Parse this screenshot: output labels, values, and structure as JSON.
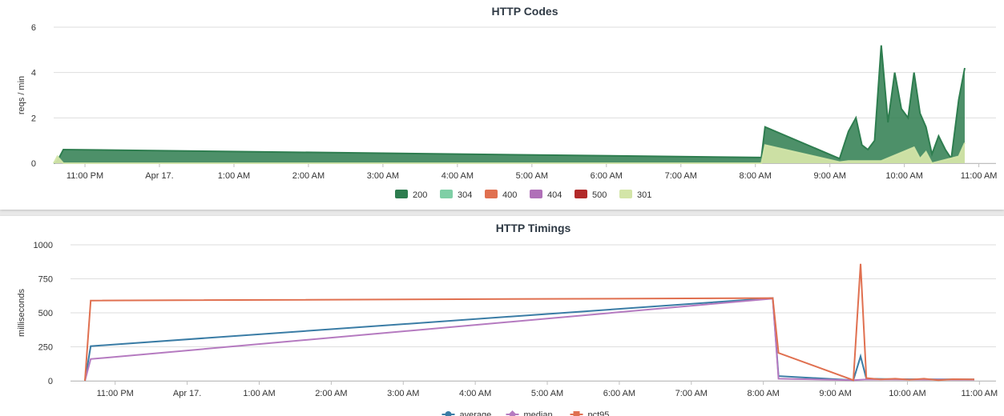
{
  "chart_data": [
    {
      "type": "area",
      "title": "HTTP Codes",
      "ylabel": "reqs / min",
      "xlabel": "",
      "ylim": [
        0,
        6
      ],
      "yticks": [
        "0",
        "2",
        "4",
        "6"
      ],
      "xlim": [
        -1.25,
        11.4
      ],
      "x_ticks": [
        {
          "x": -0.83,
          "label": "11:00 PM"
        },
        {
          "x": 0.17,
          "label": "Apr 17."
        },
        {
          "x": 1.17,
          "label": "1:00 AM"
        },
        {
          "x": 2.17,
          "label": "2:00 AM"
        },
        {
          "x": 3.17,
          "label": "3:00 AM"
        },
        {
          "x": 4.17,
          "label": "4:00 AM"
        },
        {
          "x": 5.17,
          "label": "5:00 AM"
        },
        {
          "x": 6.17,
          "label": "6:00 AM"
        },
        {
          "x": 7.17,
          "label": "7:00 AM"
        },
        {
          "x": 8.17,
          "label": "8:00 AM"
        },
        {
          "x": 9.17,
          "label": "9:00 AM"
        },
        {
          "x": 10.17,
          "label": "10:00 AM"
        },
        {
          "x": 11.17,
          "label": "11:00 AM"
        }
      ],
      "legend_position": "bottom",
      "series": [
        {
          "name": "200",
          "color": "#2e7d4f",
          "points": [
            [
              -1.25,
              0
            ],
            [
              -1.2,
              0.1
            ],
            [
              -1.12,
              0.6
            ],
            [
              8.25,
              0.25
            ],
            [
              8.3,
              1.6
            ],
            [
              9.3,
              0.2
            ],
            [
              9.42,
              1.4
            ],
            [
              9.52,
              2.0
            ],
            [
              9.6,
              0.8
            ],
            [
              9.68,
              0.6
            ],
            [
              9.77,
              1.0
            ],
            [
              9.86,
              5.2
            ],
            [
              9.95,
              1.8
            ],
            [
              10.04,
              4.0
            ],
            [
              10.13,
              2.4
            ],
            [
              10.22,
              2.0
            ],
            [
              10.3,
              4.0
            ],
            [
              10.38,
              2.2
            ],
            [
              10.46,
              1.6
            ],
            [
              10.54,
              0.4
            ],
            [
              10.63,
              1.2
            ],
            [
              10.72,
              0.6
            ],
            [
              10.8,
              0.2
            ],
            [
              10.9,
              2.8
            ],
            [
              10.98,
              4.2
            ]
          ]
        },
        {
          "name": "304",
          "color": "#7fcfa6",
          "points": []
        },
        {
          "name": "400",
          "color": "#e07050",
          "points": []
        },
        {
          "name": "404",
          "color": "#b070b8",
          "points": []
        },
        {
          "name": "500",
          "color": "#b22a2a",
          "points": []
        },
        {
          "name": "301",
          "color": "#d3e5a8",
          "points": [
            [
              -1.25,
              0
            ],
            [
              -1.2,
              0.3
            ],
            [
              -1.12,
              0
            ],
            [
              8.25,
              0
            ],
            [
              8.3,
              0.8
            ],
            [
              9.3,
              0.05
            ],
            [
              9.42,
              0.1
            ],
            [
              9.86,
              0.1
            ],
            [
              10.3,
              0.7
            ],
            [
              10.38,
              0.2
            ],
            [
              10.46,
              0.5
            ],
            [
              10.54,
              0
            ],
            [
              10.9,
              0.3
            ],
            [
              10.98,
              0.9
            ]
          ]
        }
      ]
    },
    {
      "type": "line",
      "title": "HTTP Timings",
      "ylabel": "milliseconds",
      "xlabel": "",
      "ylim": [
        0,
        1000
      ],
      "yticks": [
        "0",
        "250",
        "500",
        "750",
        "1000"
      ],
      "xlim": [
        -1.45,
        11.4
      ],
      "x_ticks": [
        {
          "x": -0.83,
          "label": "11:00 PM"
        },
        {
          "x": 0.17,
          "label": "Apr 17."
        },
        {
          "x": 1.17,
          "label": "1:00 AM"
        },
        {
          "x": 2.17,
          "label": "2:00 AM"
        },
        {
          "x": 3.17,
          "label": "3:00 AM"
        },
        {
          "x": 4.17,
          "label": "4:00 AM"
        },
        {
          "x": 5.17,
          "label": "5:00 AM"
        },
        {
          "x": 6.17,
          "label": "6:00 AM"
        },
        {
          "x": 7.17,
          "label": "7:00 AM"
        },
        {
          "x": 8.17,
          "label": "8:00 AM"
        },
        {
          "x": 9.17,
          "label": "9:00 AM"
        },
        {
          "x": 10.17,
          "label": "10:00 AM"
        },
        {
          "x": 11.17,
          "label": "11:00 AM"
        }
      ],
      "legend_position": "bottom",
      "series": [
        {
          "name": "average",
          "color": "#3a7ca5",
          "marker": "circle",
          "points": [
            [
              -1.25,
              0
            ],
            [
              -1.17,
              255
            ],
            [
              8.3,
              608
            ],
            [
              8.38,
              35
            ],
            [
              9.42,
              5
            ],
            [
              9.52,
              180
            ],
            [
              9.6,
              15
            ],
            [
              10.0,
              12
            ],
            [
              11.1,
              10
            ]
          ]
        },
        {
          "name": "median",
          "color": "#b57ac0",
          "marker": "diamond",
          "points": [
            [
              -1.25,
              0
            ],
            [
              -1.17,
              160
            ],
            [
              8.3,
              605
            ],
            [
              8.38,
              15
            ],
            [
              9.42,
              5
            ],
            [
              9.6,
              10
            ],
            [
              11.1,
              8
            ]
          ]
        },
        {
          "name": "pct95",
          "color": "#e07050",
          "marker": "square",
          "points": [
            [
              -1.25,
              0
            ],
            [
              -1.17,
              590
            ],
            [
              8.3,
              608
            ],
            [
              8.38,
              205
            ],
            [
              9.42,
              5
            ],
            [
              9.52,
              860
            ],
            [
              9.6,
              20
            ],
            [
              9.8,
              10
            ],
            [
              10.0,
              15
            ],
            [
              10.2,
              8
            ],
            [
              10.4,
              15
            ],
            [
              10.6,
              5
            ],
            [
              10.8,
              12
            ],
            [
              11.1,
              10
            ]
          ]
        }
      ]
    }
  ]
}
